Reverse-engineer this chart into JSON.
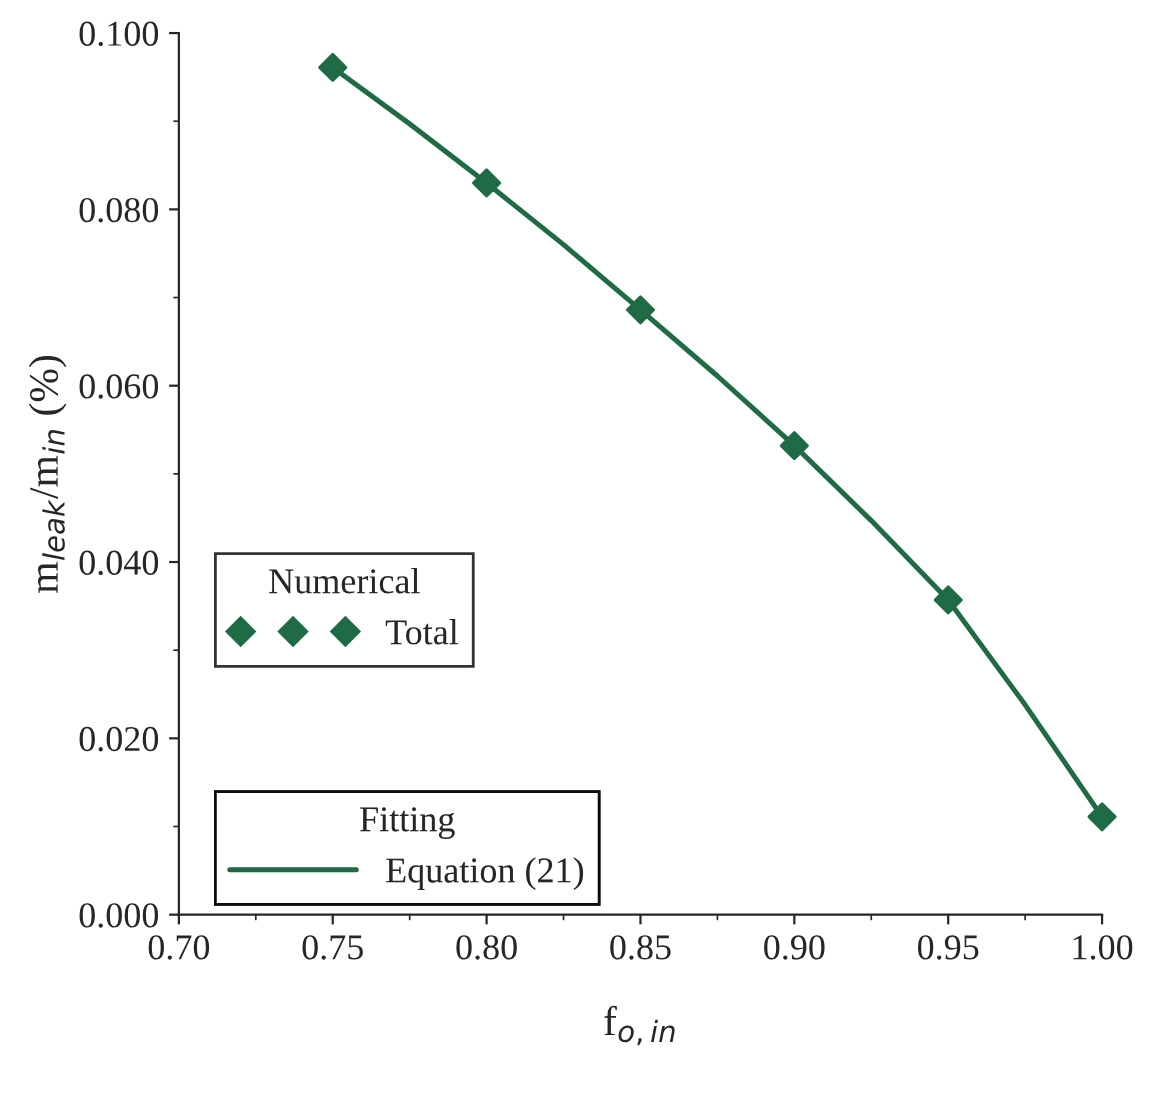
{
  "chart_data": {
    "type": "scatter",
    "xlabel": "f$_{o,in}$",
    "ylabel": "m$_{leak}$/m$_{in}$ (%)",
    "legend_title": [
      "Numerical",
      "Fitting"
    ],
    "series": [
      {
        "name": "Total",
        "color": "#1e6b45",
        "marker": "diamond",
        "x": [
          0.75,
          0.8,
          0.85,
          0.9,
          0.95,
          1.0
        ],
        "values": [
          0.0961,
          0.083,
          0.0686,
          0.0532,
          0.0357,
          0.0111
        ]
      },
      {
        "name": "Equation (21)",
        "type": "line",
        "color": "#1e6b45",
        "marker": "none",
        "line_style": "solid",
        "x": [
          0.75,
          0.775,
          0.8,
          0.825,
          0.85,
          0.875,
          0.9,
          0.925,
          0.95,
          0.975,
          1.0
        ],
        "values": [
          0.0961,
          0.0897,
          0.083,
          0.076,
          0.0686,
          0.0611,
          0.0532,
          0.0447,
          0.0357,
          0.0238,
          0.0111
        ]
      }
    ],
    "xlim": [
      0.7,
      1.0
    ],
    "xticks": [
      {
        "value": 0.7,
        "label": "0.70"
      },
      {
        "value": 0.75,
        "label": "0.75"
      },
      {
        "value": 0.8,
        "label": "0.80"
      },
      {
        "value": 0.85,
        "label": "0.85"
      },
      {
        "value": 0.9,
        "label": "0.90"
      },
      {
        "value": 0.95,
        "label": "0.95"
      },
      {
        "value": 1.0,
        "label": "1.00"
      }
    ],
    "ylim": [
      0.0,
      0.1
    ],
    "yticks": [
      {
        "value": 0.0,
        "label": "0.000"
      },
      {
        "value": 0.02,
        "label": "0.020"
      },
      {
        "value": 0.04,
        "label": "0.040"
      },
      {
        "value": 0.06,
        "label": "0.060"
      },
      {
        "value": 0.08,
        "label": "0.080"
      },
      {
        "value": 0.1,
        "label": "0.100"
      }
    ],
    "grid": false,
    "legend": "bottom left"
  }
}
